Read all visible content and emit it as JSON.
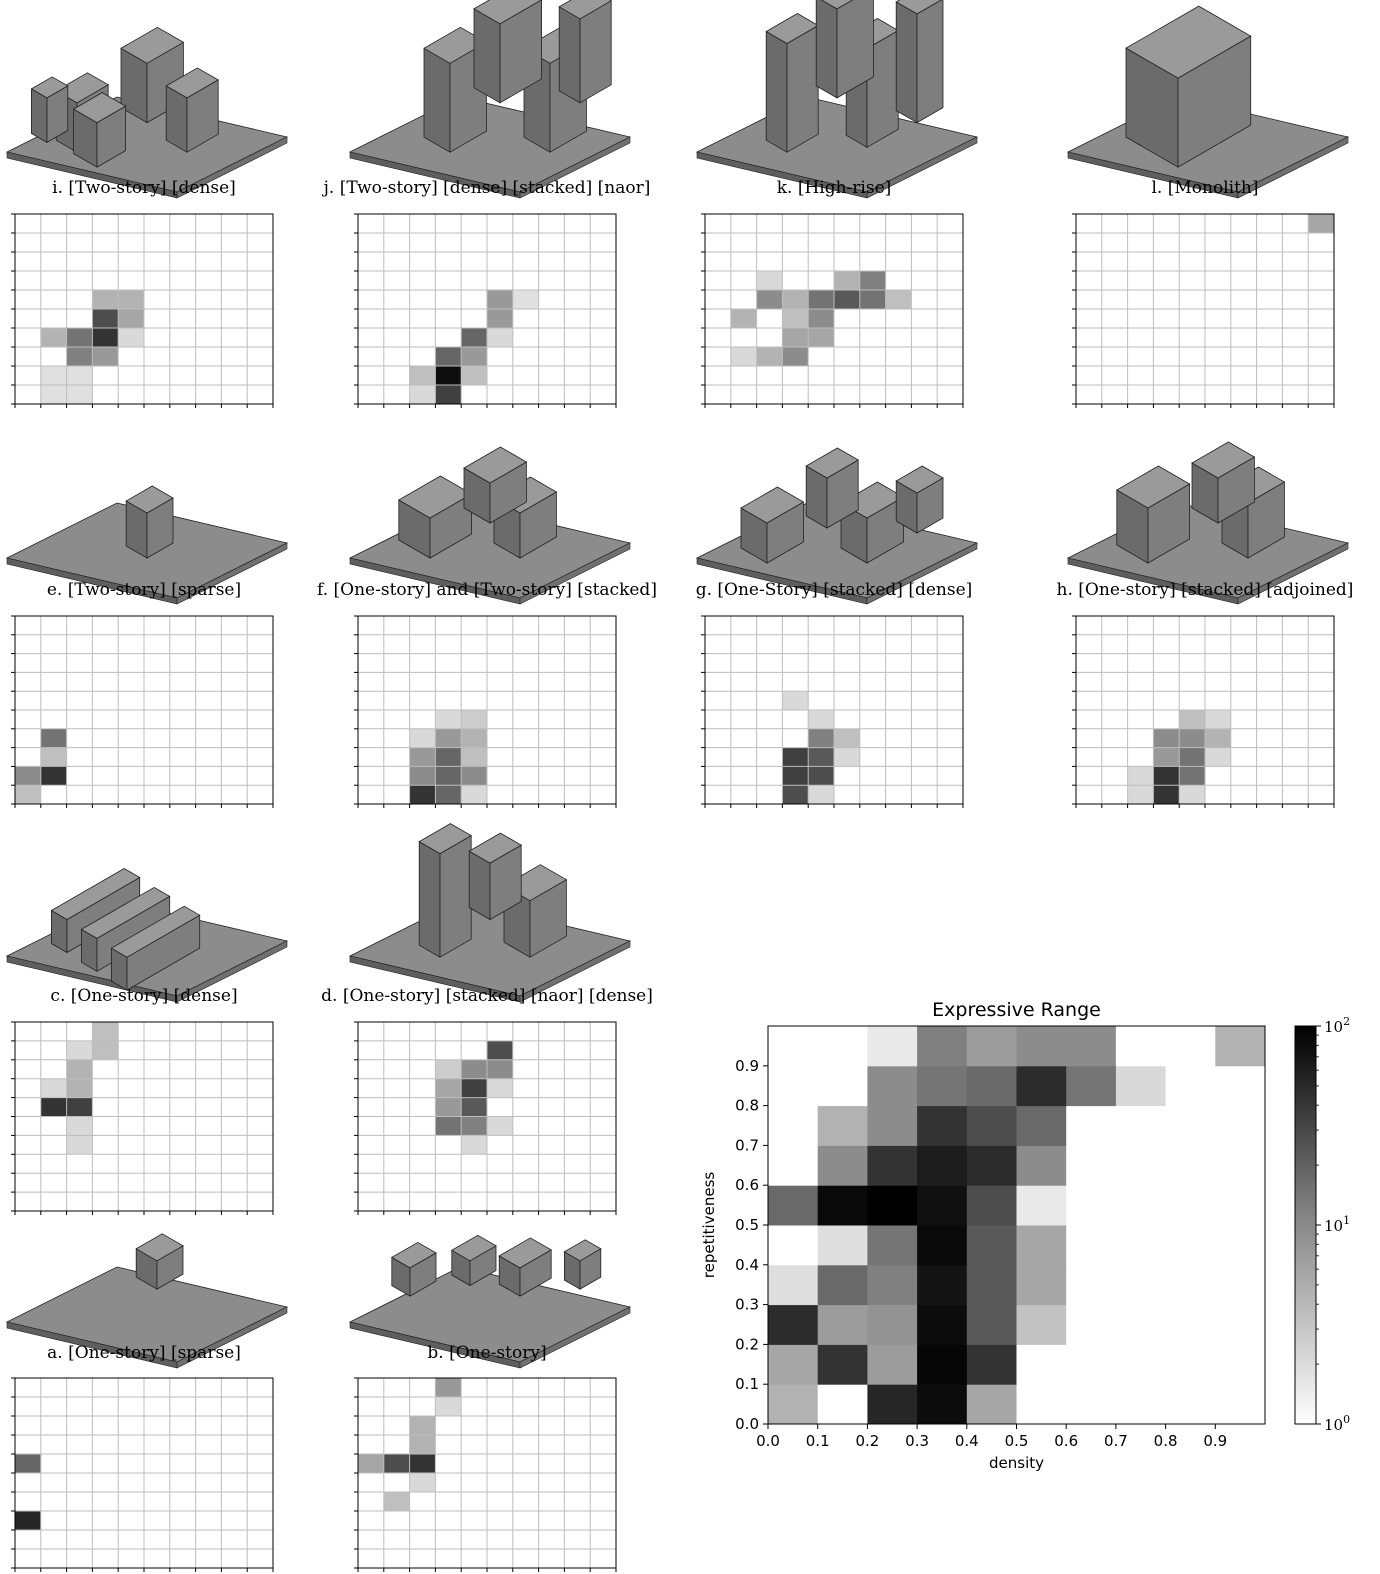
{
  "colors": {
    "building_top": "#9a9a9a",
    "building_left": "#6b6b6b",
    "building_right": "#7e7e7e",
    "building_outline": "#222222",
    "grid_line": "#bdbdbd",
    "axis": "#000000"
  },
  "panels": [
    {
      "id": "i",
      "caption": "i. [Two-story] [dense]",
      "cells": [
        [
          3,
          5,
          0.3
        ],
        [
          4,
          5,
          0.3
        ],
        [
          3,
          4,
          0.7
        ],
        [
          4,
          4,
          0.35
        ],
        [
          1,
          3,
          0.3
        ],
        [
          2,
          3,
          0.55
        ],
        [
          3,
          3,
          0.8
        ],
        [
          4,
          3,
          0.15
        ],
        [
          2,
          2,
          0.5
        ],
        [
          3,
          2,
          0.4
        ],
        [
          1,
          1,
          0.12
        ],
        [
          2,
          1,
          0.12
        ],
        [
          1,
          0,
          0.12
        ],
        [
          2,
          0,
          0.12
        ]
      ]
    },
    {
      "id": "j",
      "caption": "j. [Two-story] [dense] [stacked] [naor]",
      "cells": [
        [
          5,
          5,
          0.4
        ],
        [
          6,
          5,
          0.12
        ],
        [
          5,
          4,
          0.4
        ],
        [
          5,
          3,
          0.15
        ],
        [
          4,
          3,
          0.6
        ],
        [
          3,
          2,
          0.6
        ],
        [
          4,
          2,
          0.4
        ],
        [
          2,
          1,
          0.25
        ],
        [
          3,
          1,
          0.95
        ],
        [
          4,
          1,
          0.25
        ],
        [
          2,
          0,
          0.15
        ],
        [
          3,
          0,
          0.75
        ]
      ]
    },
    {
      "id": "k",
      "caption": "k. [High-rise]",
      "cells": [
        [
          2,
          6,
          0.15
        ],
        [
          5,
          6,
          0.3
        ],
        [
          6,
          6,
          0.5
        ],
        [
          2,
          5,
          0.45
        ],
        [
          3,
          5,
          0.3
        ],
        [
          4,
          5,
          0.55
        ],
        [
          5,
          5,
          0.65
        ],
        [
          6,
          5,
          0.55
        ],
        [
          7,
          5,
          0.25
        ],
        [
          1,
          4,
          0.3
        ],
        [
          3,
          4,
          0.25
        ],
        [
          4,
          4,
          0.45
        ],
        [
          3,
          3,
          0.35
        ],
        [
          4,
          3,
          0.35
        ],
        [
          1,
          2,
          0.15
        ],
        [
          2,
          2,
          0.3
        ],
        [
          3,
          2,
          0.45
        ]
      ]
    },
    {
      "id": "l",
      "caption": "l. [Monolith]",
      "cells": [
        [
          9,
          9,
          0.35
        ]
      ]
    },
    {
      "id": "e",
      "caption": "e. [Two-story] [sparse]",
      "cells": [
        [
          1,
          3,
          0.55
        ],
        [
          1,
          2,
          0.25
        ],
        [
          0,
          1,
          0.45
        ],
        [
          1,
          1,
          0.8
        ],
        [
          0,
          0,
          0.25
        ]
      ]
    },
    {
      "id": "f",
      "caption": "f. [One-story] and [Two-story] [stacked]",
      "cells": [
        [
          3,
          4,
          0.15
        ],
        [
          4,
          4,
          0.2
        ],
        [
          2,
          3,
          0.15
        ],
        [
          3,
          3,
          0.4
        ],
        [
          4,
          3,
          0.3
        ],
        [
          2,
          2,
          0.4
        ],
        [
          3,
          2,
          0.6
        ],
        [
          4,
          2,
          0.25
        ],
        [
          2,
          1,
          0.45
        ],
        [
          3,
          1,
          0.6
        ],
        [
          4,
          1,
          0.45
        ],
        [
          2,
          0,
          0.8
        ],
        [
          3,
          0,
          0.6
        ],
        [
          4,
          0,
          0.15
        ]
      ]
    },
    {
      "id": "g",
      "caption": "g. [One-Story] [stacked] [dense]",
      "cells": [
        [
          3,
          5,
          0.15
        ],
        [
          4,
          4,
          0.15
        ],
        [
          4,
          3,
          0.5
        ],
        [
          5,
          3,
          0.25
        ],
        [
          3,
          2,
          0.75
        ],
        [
          4,
          2,
          0.65
        ],
        [
          5,
          2,
          0.15
        ],
        [
          3,
          1,
          0.75
        ],
        [
          4,
          1,
          0.7
        ],
        [
          3,
          0,
          0.7
        ],
        [
          4,
          0,
          0.15
        ]
      ]
    },
    {
      "id": "h",
      "caption": "h. [One-story] [stacked] [adjoined]",
      "cells": [
        [
          4,
          4,
          0.25
        ],
        [
          5,
          4,
          0.15
        ],
        [
          3,
          3,
          0.45
        ],
        [
          4,
          3,
          0.45
        ],
        [
          5,
          3,
          0.3
        ],
        [
          3,
          2,
          0.4
        ],
        [
          4,
          2,
          0.55
        ],
        [
          5,
          2,
          0.15
        ],
        [
          2,
          1,
          0.15
        ],
        [
          3,
          1,
          0.8
        ],
        [
          4,
          1,
          0.55
        ],
        [
          2,
          0,
          0.15
        ],
        [
          3,
          0,
          0.8
        ],
        [
          4,
          0,
          0.15
        ]
      ]
    },
    {
      "id": "c",
      "caption": "c. [One-story] [dense]",
      "cells": [
        [
          3,
          9,
          0.25
        ],
        [
          2,
          8,
          0.15
        ],
        [
          3,
          8,
          0.25
        ],
        [
          2,
          7,
          0.3
        ],
        [
          1,
          6,
          0.15
        ],
        [
          2,
          6,
          0.3
        ],
        [
          1,
          5,
          0.8
        ],
        [
          2,
          5,
          0.75
        ],
        [
          2,
          4,
          0.15
        ],
        [
          2,
          3,
          0.15
        ]
      ]
    },
    {
      "id": "d",
      "caption": "d. [One-story] [stacked] [naor] [dense]",
      "cells": [
        [
          5,
          8,
          0.7
        ],
        [
          3,
          7,
          0.2
        ],
        [
          4,
          7,
          0.45
        ],
        [
          5,
          7,
          0.45
        ],
        [
          3,
          6,
          0.35
        ],
        [
          4,
          6,
          0.75
        ],
        [
          5,
          6,
          0.15
        ],
        [
          3,
          5,
          0.4
        ],
        [
          4,
          5,
          0.65
        ],
        [
          3,
          4,
          0.55
        ],
        [
          4,
          4,
          0.5
        ],
        [
          5,
          4,
          0.15
        ],
        [
          4,
          3,
          0.15
        ]
      ]
    },
    {
      "id": "a",
      "caption": "a. [One-story] [sparse]",
      "cells": [
        [
          0,
          5,
          0.6
        ],
        [
          0,
          2,
          0.85
        ]
      ]
    },
    {
      "id": "b",
      "caption": "b. [One-story]",
      "cells": [
        [
          3,
          9,
          0.4
        ],
        [
          3,
          8,
          0.15
        ],
        [
          2,
          7,
          0.3
        ],
        [
          2,
          6,
          0.3
        ],
        [
          0,
          5,
          0.35
        ],
        [
          1,
          5,
          0.7
        ],
        [
          2,
          5,
          0.8
        ],
        [
          2,
          4,
          0.15
        ],
        [
          1,
          3,
          0.25
        ]
      ]
    }
  ],
  "chart_data": {
    "type": "heatmap",
    "title": "Expressive Range",
    "xlabel": "density",
    "ylabel": "repetitiveness",
    "xlim": [
      0,
      1
    ],
    "ylim": [
      0,
      1
    ],
    "x_bins": [
      0.0,
      0.1,
      0.2,
      0.3,
      0.4,
      0.5,
      0.6,
      0.7,
      0.8,
      0.9
    ],
    "y_bins": [
      0.0,
      0.1,
      0.2,
      0.3,
      0.4,
      0.5,
      0.6,
      0.7,
      0.8,
      0.9
    ],
    "x_ticks": [
      "0.0",
      "0.1",
      "0.2",
      "0.3",
      "0.4",
      "0.5",
      "0.6",
      "0.7",
      "0.8",
      "0.9"
    ],
    "y_ticks": [
      "0.0",
      "0.1",
      "0.2",
      "0.3",
      "0.4",
      "0.5",
      "0.6",
      "0.7",
      "0.8",
      "0.9"
    ],
    "color_scale": "log",
    "colorbar_range": [
      1,
      100
    ],
    "colorbar_ticks": [
      {
        "base": "10",
        "exp": "0",
        "value": 1
      },
      {
        "base": "10",
        "exp": "1",
        "value": 10
      },
      {
        "base": "10",
        "exp": "2",
        "value": 100
      }
    ],
    "counts": [
      [
        4,
        0,
        50,
        80,
        5,
        0,
        0,
        0,
        0,
        0
      ],
      [
        5,
        40,
        6,
        90,
        40,
        0,
        0,
        0,
        0,
        0
      ],
      [
        45,
        6,
        7,
        80,
        20,
        3,
        0,
        0,
        0,
        0
      ],
      [
        1.8,
        15,
        10,
        70,
        20,
        5,
        0,
        0,
        0,
        0
      ],
      [
        0,
        1.8,
        12,
        85,
        20,
        5,
        0,
        0,
        0,
        0
      ],
      [
        15,
        85,
        99,
        75,
        25,
        1.5,
        0,
        0,
        0,
        0
      ],
      [
        0,
        8,
        40,
        60,
        45,
        8,
        0,
        0,
        0,
        0
      ],
      [
        0,
        4,
        8,
        40,
        25,
        15,
        0,
        0,
        0,
        0
      ],
      [
        0,
        0,
        8,
        12,
        15,
        45,
        12,
        2,
        0,
        0
      ],
      [
        0,
        0,
        1.5,
        10,
        6,
        8,
        8,
        0,
        0,
        4
      ]
    ]
  }
}
